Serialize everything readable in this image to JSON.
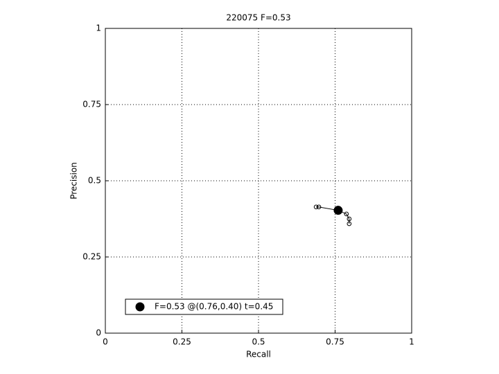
{
  "chart_data": {
    "type": "line",
    "title": "220075 F=0.53",
    "xlabel": "Recall",
    "ylabel": "Precision",
    "xlim": [
      0,
      1
    ],
    "ylim": [
      0,
      1
    ],
    "xticks": [
      0,
      0.25,
      0.5,
      0.75,
      1
    ],
    "yticks": [
      0,
      0.25,
      0.5,
      0.75,
      1
    ],
    "grid": true,
    "legend": "lower left",
    "series": [
      {
        "color": "#000000",
        "marker": "circle",
        "x": [
          0.688,
          0.697,
          0.76,
          0.787,
          0.796,
          0.796
        ],
        "values": [
          0.414,
          0.414,
          0.403,
          0.391,
          0.375,
          0.359
        ]
      },
      {
        "name": "F=0.53 @(0.76,0.40) t=0.45",
        "color": "#000000",
        "marker": "dot",
        "x": [
          0.76
        ],
        "values": [
          0.403
        ]
      }
    ]
  }
}
